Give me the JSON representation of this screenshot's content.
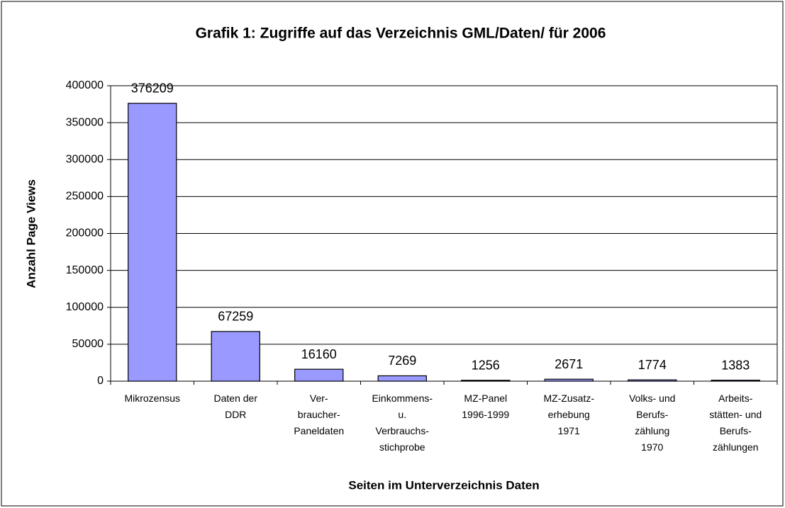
{
  "chart_data": {
    "type": "bar",
    "title": "Grafik 1: Zugriffe auf das Verzeichnis GML/Daten/ für 2006",
    "x_label": "Seiten im Unterverzeichnis Daten",
    "y_label": "Anzahl Page Views",
    "categories": [
      [
        "Mikrozensus"
      ],
      [
        "Daten der",
        "DDR"
      ],
      [
        "Ver-",
        "braucher-",
        "Paneldaten"
      ],
      [
        "Einkommens-",
        "u.",
        "Verbrauchs-",
        "stichprobe"
      ],
      [
        "MZ-Panel",
        "1996-1999"
      ],
      [
        "MZ-Zusatz-",
        "erhebung",
        "1971"
      ],
      [
        "Volks- und",
        "Berufs-",
        "zählung",
        "1970"
      ],
      [
        "Arbeits-",
        "stätten- und",
        "Berufs-",
        "zählungen"
      ]
    ],
    "values": [
      376209,
      67259,
      16160,
      7269,
      1256,
      2671,
      1774,
      1383
    ],
    "color": "#9999ff",
    "ylim": [
      0,
      400000
    ],
    "yticks": [
      0,
      50000,
      100000,
      150000,
      200000,
      250000,
      300000,
      350000,
      400000
    ],
    "grid": true
  }
}
